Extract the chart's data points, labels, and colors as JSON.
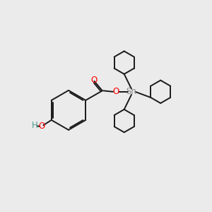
{
  "bg_color": "#ebebeb",
  "bond_color": "#1a1a1a",
  "O_color": "#ff0000",
  "Sn_color": "#888888",
  "H_color": "#4a9a8a",
  "line_width": 1.4,
  "figsize": [
    3.0,
    3.0
  ],
  "dpi": 100,
  "xlim": [
    0,
    10
  ],
  "ylim": [
    0,
    10
  ]
}
